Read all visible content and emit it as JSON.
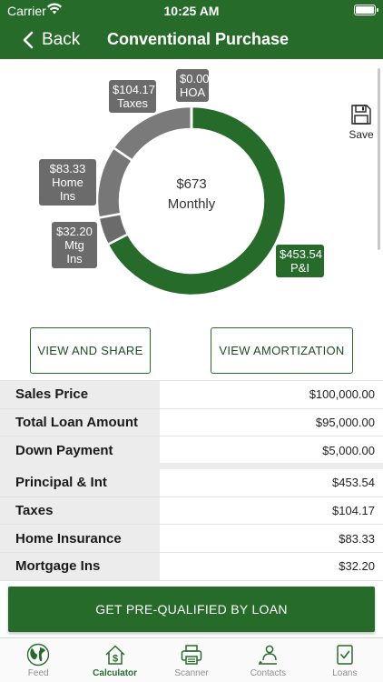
{
  "status_bar": {
    "carrier": "Carrier",
    "time": "10:25 AM"
  },
  "nav": {
    "back_label": "Back",
    "title": "Conventional Purchase"
  },
  "chart_data": {
    "type": "pie",
    "hole": true,
    "center_amount": "$673",
    "center_label": "Monthly",
    "slices": [
      {
        "name": "P&I",
        "value": 453.54,
        "amount": "$453.54",
        "color": "#276b2a"
      },
      {
        "name": "Mtg Ins",
        "value": 32.2,
        "amount": "$32.20",
        "color": "#6b6b6b"
      },
      {
        "name": "Home Ins",
        "value": 83.33,
        "amount": "$83.33",
        "color": "#777777"
      },
      {
        "name": "Taxes",
        "value": 104.17,
        "amount": "$104.17",
        "color": "#7a7a7a"
      },
      {
        "name": "HOA",
        "value": 0.0,
        "amount": "$0.00",
        "color": "#6b6b6b"
      }
    ]
  },
  "save": {
    "label": "Save",
    "icon": "floppy-disk-icon"
  },
  "actions": {
    "share_label": "VIEW AND SHARE",
    "amortization_label": "VIEW AMORTIZATION"
  },
  "loan_table": [
    {
      "label": "Sales Price",
      "value": "$100,000.00"
    },
    {
      "label": "Total Loan Amount",
      "value": "$95,000.00"
    },
    {
      "label": "Down Payment",
      "value": "$5,000.00"
    }
  ],
  "payment_table": [
    {
      "label": "Principal & Int",
      "value": "$453.54"
    },
    {
      "label": "Taxes",
      "value": "$104.17"
    },
    {
      "label": "Home Insurance",
      "value": "$83.33"
    },
    {
      "label": "Mortgage Ins",
      "value": "$32.20"
    }
  ],
  "prequal_label": "GET PRE-QUALIFIED BY LOAN",
  "tabs": [
    {
      "label": "Feed",
      "icon": "globe-icon"
    },
    {
      "label": "Calculator",
      "icon": "house-dollar-icon"
    },
    {
      "label": "Scanner",
      "icon": "printer-icon"
    },
    {
      "label": "Contacts",
      "icon": "contacts-icon"
    },
    {
      "label": "Loans",
      "icon": "document-check-icon"
    }
  ],
  "theme": {
    "primary": "#276b2a",
    "slice_gray": "#777777"
  }
}
